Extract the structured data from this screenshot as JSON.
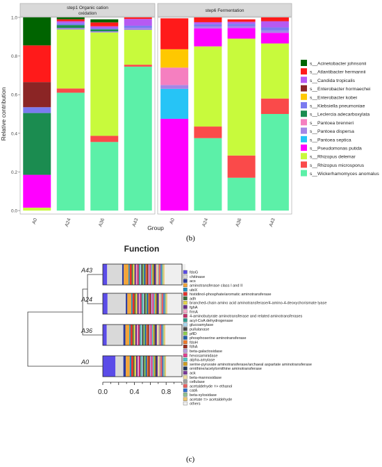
{
  "caption_b": "(b)",
  "caption_c": "(c)",
  "chart_data": [
    {
      "type": "bar",
      "stacked": true,
      "facets": [
        "step1 Organic cation oxidation",
        "step6 Fermentation"
      ],
      "facet_lines": [
        [
          "step1 Organic cation",
          "oxidation"
        ],
        [
          "step6 Fermentation"
        ]
      ],
      "categories": [
        "A0",
        "A24",
        "A36",
        "A43"
      ],
      "xlabel": "Group",
      "ylabel": "Relative contribution",
      "ylim": [
        0,
        1
      ],
      "yticks": [
        "0.0",
        "0.2",
        "0.4",
        "0.6",
        "0.8",
        "1.0"
      ],
      "legend_position": "right",
      "series": [
        {
          "name": "s__Wickerhamomyces anomalus",
          "color": "#5CF0A8",
          "values": [
            [
              0.0,
              0.61,
              0.355,
              0.745
            ],
            [
              0.0,
              0.375,
              0.17,
              0.5
            ]
          ]
        },
        {
          "name": "s__Rhizopus microsporus",
          "color": "#FA4A4A",
          "values": [
            [
              0.0,
              0.022,
              0.032,
              0.01
            ],
            [
              0.0,
              0.06,
              0.115,
              0.08
            ]
          ]
        },
        {
          "name": "s__Rhizopus delemar",
          "color": "#C8FA3C",
          "values": [
            [
              0.015,
              0.305,
              0.535,
              0.18
            ],
            [
              0.0,
              0.415,
              0.605,
              0.285
            ]
          ]
        },
        {
          "name": "s__Pseudomonas putida",
          "color": "#FF00FF",
          "values": [
            [
              0.17,
              0.0,
              0.0,
              0.0
            ],
            [
              0.475,
              0.093,
              0.055,
              0.055
            ]
          ]
        },
        {
          "name": "s__Pantoea septica",
          "color": "#26C4F6",
          "values": [
            [
              0.0,
              0.0,
              0.0,
              0.0
            ],
            [
              0.155,
              0.0,
              0.0,
              0.0
            ]
          ]
        },
        {
          "name": "s__Pantoea dispersa",
          "color": "#A586E6",
          "values": [
            [
              0.0,
              0.008,
              0.006,
              0.01
            ],
            [
              0.02,
              0.01,
              0.01,
              0.012
            ]
          ]
        },
        {
          "name": "s__Pantoea brenneri",
          "color": "#F57FC0",
          "values": [
            [
              0.0,
              0.0,
              0.0,
              0.0
            ],
            [
              0.09,
              0.0,
              0.0,
              0.0
            ]
          ]
        },
        {
          "name": "s__Leclercia adecarboxylata",
          "color": "#1B8C50",
          "values": [
            [
              0.32,
              0.015,
              0.01,
              0.0
            ],
            [
              0.0,
              0.0,
              0.0,
              0.0
            ]
          ]
        },
        {
          "name": "s__Klebsiella pneumoniae",
          "color": "#7B7BF0",
          "values": [
            [
              0.03,
              0.01,
              0.006,
              0.012
            ],
            [
              0.0,
              0.012,
              0.012,
              0.016
            ]
          ]
        },
        {
          "name": "s__Enterobacter kobei",
          "color": "#FFC800",
          "values": [
            [
              0.0,
              0.0,
              0.0,
              0.0
            ],
            [
              0.095,
              0.0,
              0.0,
              0.0
            ]
          ]
        },
        {
          "name": "s__Enterobacter hormaechei",
          "color": "#8B2525",
          "values": [
            [
              0.13,
              0.0,
              0.0,
              0.0
            ],
            [
              0.0,
              0.0,
              0.0,
              0.0
            ]
          ]
        },
        {
          "name": "s__Candida tropicalis",
          "color": "#B65AF2",
          "values": [
            [
              0.0,
              0.01,
              0.01,
              0.035
            ],
            [
              0.0,
              0.01,
              0.01,
              0.032
            ]
          ]
        },
        {
          "name": "s__Atlantibacter hermannii",
          "color": "#FF1A1A",
          "values": [
            [
              0.19,
              0.01,
              0.02,
              0.008
            ],
            [
              0.16,
              0.025,
              0.013,
              0.02
            ]
          ]
        },
        {
          "name": "s__Acinetobacter johnsonii",
          "color": "#006400",
          "values": [
            [
              0.145,
              0.01,
              0.016,
              0.0
            ],
            [
              0.0,
              0.0,
              0.0,
              0.0
            ]
          ]
        }
      ]
    },
    {
      "type": "bar",
      "horizontal": true,
      "stacked": true,
      "title": "Function",
      "categories": [
        "A43",
        "A24",
        "A36",
        "A0"
      ],
      "dendrogram_order": [
        "A43",
        "A24",
        "A36",
        "A0"
      ],
      "xlim": [
        0,
        1
      ],
      "xticks": [
        "0.0",
        "0.4",
        "0.8"
      ],
      "legend_position": "right",
      "legend": [
        {
          "name": "fdoG",
          "color": "#5B4CE8"
        },
        {
          "name": "chitinase",
          "color": "#D9D9D9"
        },
        {
          "name": "acs",
          "color": "#2B3A9E"
        },
        {
          "name": "aminotransferase class I and II",
          "color": "#F2A53A"
        },
        {
          "name": "ubiX",
          "color": "#1F8FC0"
        },
        {
          "name": "histidinol-phosphate/aromatic aminotransferase",
          "color": "#E8302A"
        },
        {
          "name": "adh",
          "color": "#3A6E3A"
        },
        {
          "name": "branched-chain amino acid aminotransferase/4-amino-4-deoxychorismate lyase",
          "color": "#E5D84A"
        },
        {
          "name": "fghA",
          "color": "#6A2E8A"
        },
        {
          "name": "frmA",
          "color": "#F5A8C8"
        },
        {
          "name": "4-aminobutyrate aminotransferase and related aminotransferases",
          "color": "#C22F6A"
        },
        {
          "name": "acyl-CoA dehydrogenase",
          "color": "#2E9E8E"
        },
        {
          "name": "glucoamylase",
          "color": "#A8D8F0"
        },
        {
          "name": "pullulanase",
          "color": "#4A4A4A"
        },
        {
          "name": "pflD",
          "color": "#8FD14F"
        },
        {
          "name": "phosphoserine aminotransferase",
          "color": "#1E5FA8"
        },
        {
          "name": "fdoH",
          "color": "#F07828"
        },
        {
          "name": "fdhA",
          "color": "#9B2D20"
        },
        {
          "name": "beta-galactosidase",
          "color": "#B8A0E0"
        },
        {
          "name": "hexosaminidase",
          "color": "#E04090"
        },
        {
          "name": "alpha-amylase",
          "color": "#50C8C8"
        },
        {
          "name": "serine-pyruvate aminotransferase/archaeal aspartate aminotransferase",
          "color": "#D0A020"
        },
        {
          "name": "ornithine/acetylornithine aminotransferase",
          "color": "#203860"
        },
        {
          "name": "ack",
          "color": "#7A3A9A"
        },
        {
          "name": "beta-mannosidase",
          "color": "#F0E0A0"
        },
        {
          "name": "cellulase",
          "color": "#A0A0A0"
        },
        {
          "name": "acetaldehyde => ethanol",
          "color": "#E86060"
        },
        {
          "name": "catA",
          "color": "#3070D0"
        },
        {
          "name": "beta-xylosidase",
          "color": "#90C090"
        },
        {
          "name": "acetate => acetaldehyde",
          "color": "#F0C870"
        },
        {
          "name": "others",
          "color": "#EFEFEF"
        }
      ],
      "rows": [
        {
          "name": "A43",
          "values": [
            0.055,
            0.19,
            0.02,
            0.06,
            0.015,
            0.025,
            0.015,
            0.02,
            0.02,
            0.015,
            0.02,
            0.015,
            0.015,
            0.02,
            0.015,
            0.02,
            0.015,
            0.02,
            0.015,
            0.02,
            0.015,
            0.02,
            0.015,
            0.015,
            0.02,
            0.015,
            0.02,
            0.015,
            0.02,
            0.015,
            0.265
          ]
        },
        {
          "name": "A24",
          "values": [
            0.06,
            0.23,
            0.02,
            0.05,
            0.015,
            0.025,
            0.015,
            0.02,
            0.02,
            0.015,
            0.02,
            0.015,
            0.015,
            0.02,
            0.015,
            0.02,
            0.015,
            0.02,
            0.015,
            0.02,
            0.015,
            0.02,
            0.015,
            0.015,
            0.02,
            0.015,
            0.02,
            0.015,
            0.02,
            0.015,
            0.215
          ]
        },
        {
          "name": "A36",
          "values": [
            0.05,
            0.21,
            0.025,
            0.05,
            0.015,
            0.025,
            0.015,
            0.02,
            0.02,
            0.015,
            0.02,
            0.015,
            0.015,
            0.02,
            0.015,
            0.02,
            0.015,
            0.02,
            0.015,
            0.02,
            0.015,
            0.02,
            0.015,
            0.015,
            0.02,
            0.015,
            0.02,
            0.015,
            0.02,
            0.015,
            0.24
          ]
        },
        {
          "name": "A0",
          "values": [
            0.16,
            0.1,
            0.03,
            0.05,
            0.02,
            0.025,
            0.015,
            0.02,
            0.02,
            0.015,
            0.02,
            0.015,
            0.015,
            0.02,
            0.015,
            0.02,
            0.015,
            0.02,
            0.015,
            0.02,
            0.015,
            0.02,
            0.015,
            0.015,
            0.02,
            0.015,
            0.02,
            0.015,
            0.02,
            0.015,
            0.22
          ]
        }
      ]
    }
  ]
}
